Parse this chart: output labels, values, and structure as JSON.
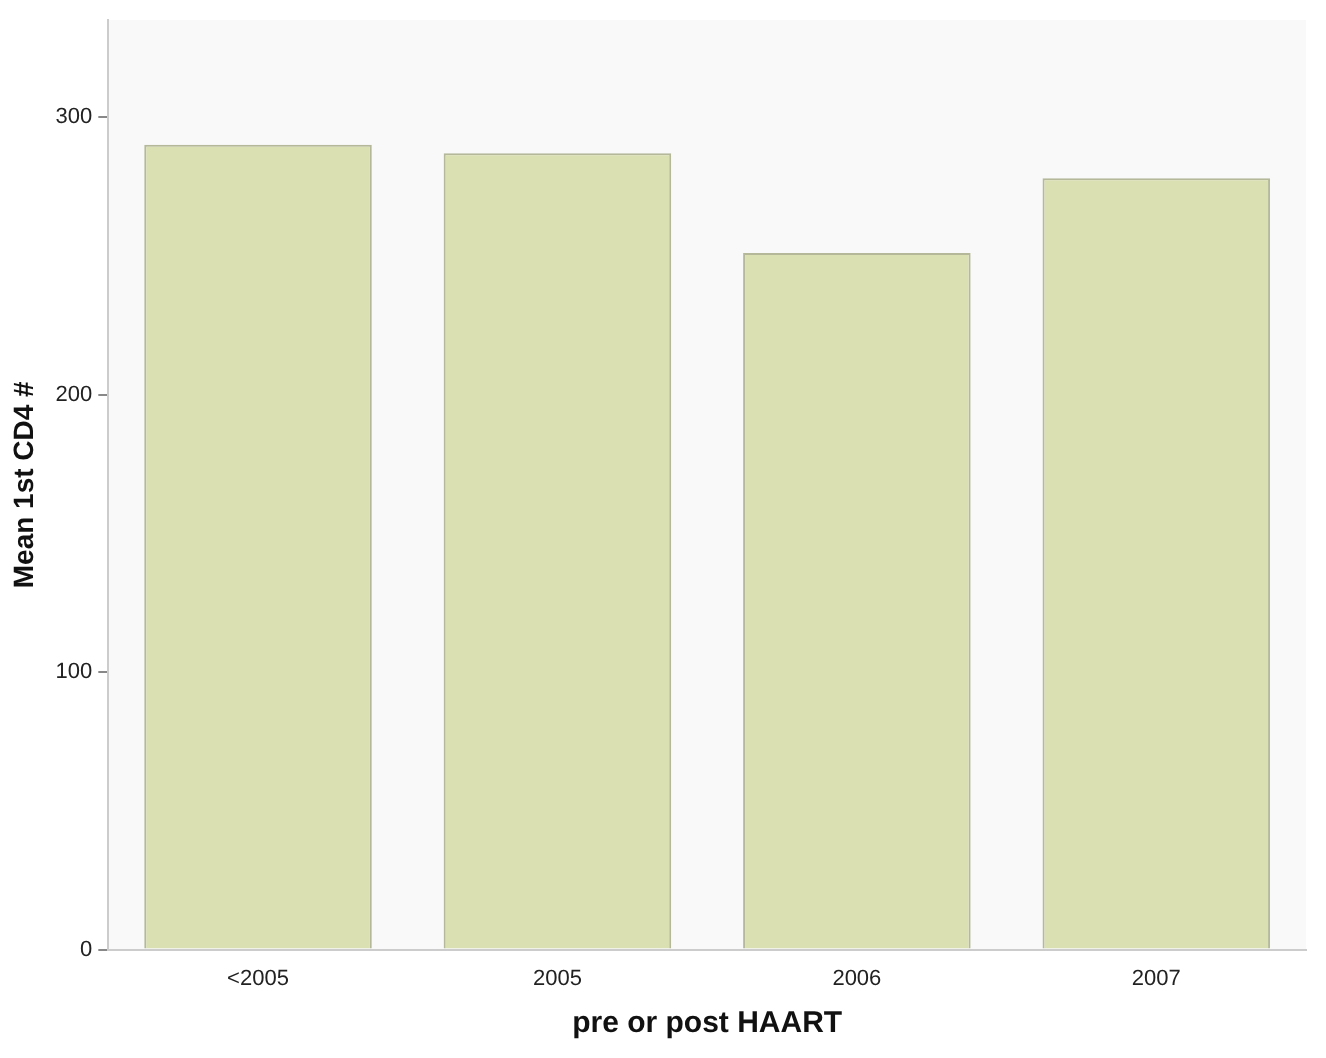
{
  "chart_data": {
    "type": "bar",
    "xlabel": "pre or post HAART",
    "ylabel": "Mean 1st CD4 #",
    "categories": [
      "<2005",
      "2005",
      "2006",
      "2007"
    ],
    "values": [
      290,
      287,
      251,
      278
    ],
    "color": "#dbe0b2",
    "ylim": [
      0,
      335
    ],
    "yticks": [
      0,
      100,
      200,
      300
    ],
    "grid": false,
    "legend": false
  }
}
